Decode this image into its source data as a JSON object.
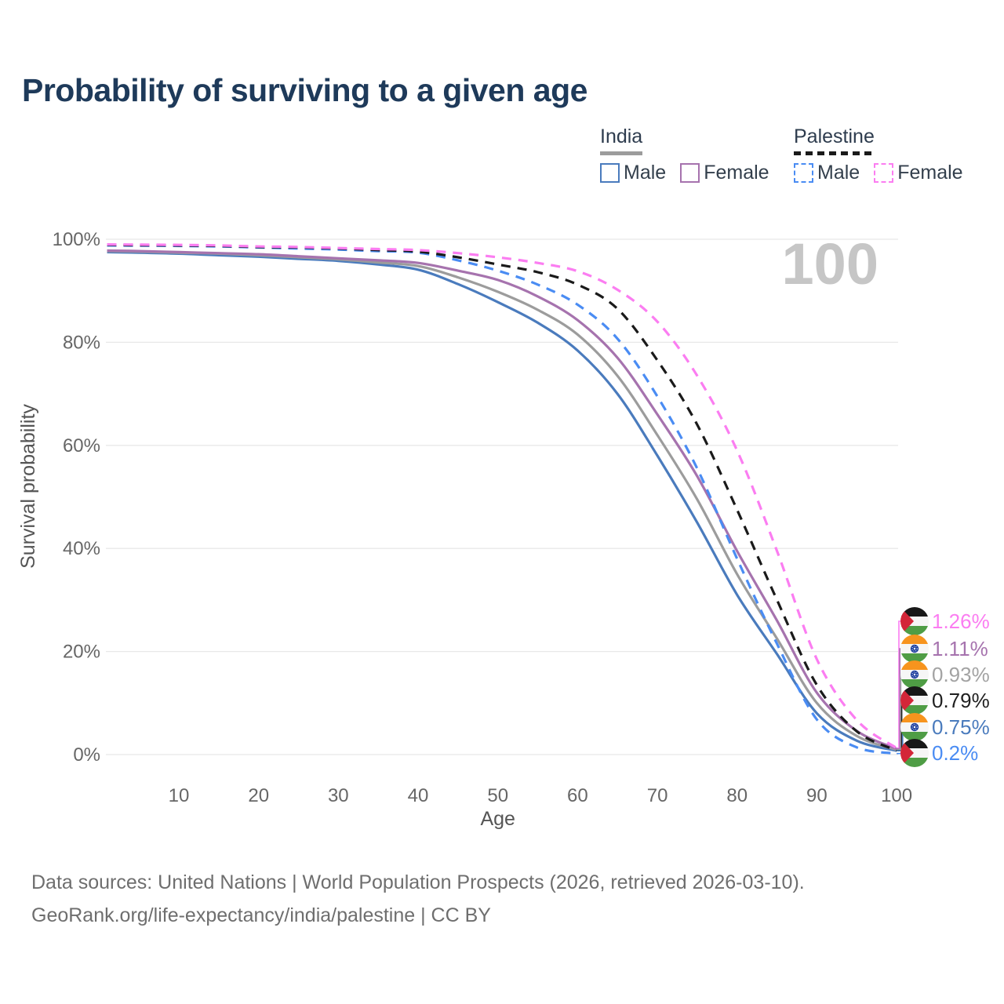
{
  "title": "Probability of surviving to a given age",
  "watermark": "100",
  "legend": {
    "groups": [
      {
        "label": "India",
        "underline_color": "#9c9c9c",
        "underline_style": "solid",
        "items": [
          {
            "label": "Male",
            "color": "#4a7bbd",
            "style": "solid"
          },
          {
            "label": "Female",
            "color": "#a673ae",
            "style": "solid"
          }
        ]
      },
      {
        "label": "Palestine",
        "underline_color": "#1a1a1a",
        "underline_style": "dashed",
        "items": [
          {
            "label": "Male",
            "color": "#4a8cf3",
            "style": "dashed"
          },
          {
            "label": "Female",
            "color": "#fb7df1",
            "style": "dashed"
          }
        ]
      }
    ]
  },
  "chart_data": {
    "type": "line",
    "title": "Probability of surviving to a given age",
    "xlabel": "Age",
    "ylabel": "Survival probability",
    "xlim": [
      0,
      100
    ],
    "ylim": [
      0,
      100
    ],
    "grid": "horizontal",
    "legend_position": "top-right",
    "x_ticks": [
      10,
      20,
      30,
      40,
      50,
      60,
      70,
      80,
      90,
      100
    ],
    "y_ticks": [
      0,
      20,
      40,
      60,
      80,
      100
    ],
    "y_tick_suffix": "%",
    "ages": [
      1,
      5,
      10,
      15,
      20,
      25,
      30,
      35,
      40,
      45,
      50,
      55,
      60,
      65,
      70,
      75,
      80,
      85,
      90,
      95,
      100
    ],
    "series": [
      {
        "name": "India Male",
        "country": "India",
        "sex": "Male",
        "color": "#4a7bbd",
        "dash": false,
        "values": [
          97.5,
          97.4,
          97.2,
          96.9,
          96.6,
          96.2,
          95.8,
          95.1,
          94.1,
          91.3,
          87.8,
          83.8,
          78.4,
          70.0,
          58.0,
          45.0,
          31.0,
          19.5,
          8.0,
          2.7,
          0.75
        ]
      },
      {
        "name": "India",
        "country": "India",
        "sex": "Both",
        "color": "#9c9c9c",
        "dash": false,
        "values": [
          97.7,
          97.6,
          97.4,
          97.2,
          96.9,
          96.5,
          96.1,
          95.5,
          94.8,
          92.6,
          89.8,
          86.3,
          81.5,
          73.5,
          62.0,
          49.5,
          35.0,
          22.5,
          10.0,
          3.6,
          0.93
        ]
      },
      {
        "name": "India Female",
        "country": "India",
        "sex": "Female",
        "color": "#a673ae",
        "dash": false,
        "values": [
          97.8,
          97.7,
          97.5,
          97.3,
          97.1,
          96.7,
          96.3,
          95.9,
          95.4,
          93.9,
          92.1,
          88.9,
          84.3,
          77.0,
          66.0,
          54.0,
          39.5,
          26.0,
          12.0,
          4.6,
          1.11
        ]
      },
      {
        "name": "Palestine Male",
        "country": "Palestine",
        "sex": "Male",
        "color": "#4a8cf3",
        "dash": true,
        "values": [
          98.8,
          98.75,
          98.7,
          98.6,
          98.4,
          98.2,
          98.0,
          97.7,
          97.4,
          95.9,
          93.9,
          91.2,
          87.3,
          80.7,
          69.5,
          55.5,
          38.0,
          21.5,
          6.8,
          1.4,
          0.2
        ]
      },
      {
        "name": "Palestine",
        "country": "Palestine",
        "sex": "Both",
        "color": "#1a1a1a",
        "dash": true,
        "values": [
          98.9,
          98.85,
          98.8,
          98.7,
          98.5,
          98.4,
          98.2,
          97.9,
          97.6,
          96.5,
          95.1,
          93.6,
          91.2,
          86.5,
          76.5,
          64.0,
          47.5,
          30.0,
          13.5,
          4.5,
          0.79
        ]
      },
      {
        "name": "Palestine Female",
        "country": "Palestine",
        "sex": "Female",
        "color": "#fb7df1",
        "dash": true,
        "values": [
          99.0,
          98.95,
          98.9,
          98.8,
          98.6,
          98.5,
          98.3,
          98.1,
          97.9,
          97.3,
          96.5,
          95.4,
          93.8,
          90.2,
          84.0,
          73.5,
          59.0,
          39.5,
          18.5,
          6.7,
          1.26
        ]
      }
    ]
  },
  "end_labels": [
    {
      "label": "1.26%",
      "series": "Palestine Female",
      "flag": "palestine",
      "color": "#fb7df1"
    },
    {
      "label": "1.11%",
      "series": "India Female",
      "flag": "india",
      "color": "#a673ae"
    },
    {
      "label": "0.93%",
      "series": "India",
      "flag": "india",
      "color": "#a3a3a3"
    },
    {
      "label": "0.79%",
      "series": "Palestine",
      "flag": "palestine",
      "color": "#1f1f1f"
    },
    {
      "label": "0.75%",
      "series": "India Male",
      "flag": "india",
      "color": "#4a7bbd"
    },
    {
      "label": "0.2%",
      "series": "Palestine Male",
      "flag": "palestine",
      "color": "#4a8cf3"
    }
  ],
  "footer": {
    "line1": "Data sources: United Nations | World Population Prospects (2026, retrieved 2026-03-10).",
    "line2": "GeoRank.org/life-expectancy/india/palestine | CC BY"
  }
}
